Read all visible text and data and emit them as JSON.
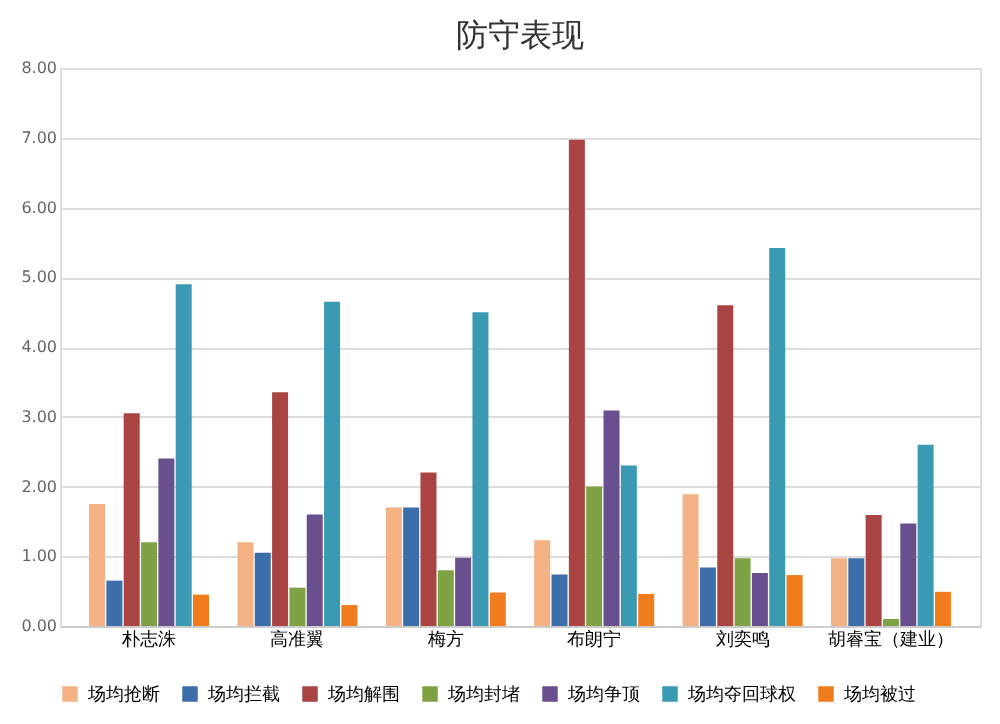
{
  "chart_data": {
    "type": "bar",
    "title": "防守表现",
    "categories": [
      "朴志洙",
      "高准翼",
      "梅方",
      "布朗宁",
      "刘奕鸣",
      "胡睿宝（建业）"
    ],
    "series": [
      {
        "name": "场均抢断",
        "color": "#f4b183",
        "values": [
          1.75,
          1.2,
          1.7,
          1.23,
          1.89,
          0.97
        ]
      },
      {
        "name": "场均拦截",
        "color": "#3c6eaa",
        "values": [
          0.65,
          1.05,
          1.7,
          0.74,
          0.84,
          0.97
        ]
      },
      {
        "name": "场均解围",
        "color": "#a94442",
        "values": [
          3.05,
          3.35,
          2.2,
          6.97,
          4.6,
          1.59
        ]
      },
      {
        "name": "场均封堵",
        "color": "#7fa344",
        "values": [
          1.2,
          0.55,
          0.8,
          2.0,
          0.97,
          0.1
        ]
      },
      {
        "name": "场均争顶",
        "color": "#6a4f8f",
        "values": [
          2.4,
          1.6,
          0.98,
          3.09,
          0.76,
          1.47
        ]
      },
      {
        "name": "场均夺回球权",
        "color": "#3a9ab4",
        "values": [
          4.9,
          4.65,
          4.5,
          2.3,
          5.42,
          2.6
        ]
      },
      {
        "name": "场均被过",
        "color": "#f07c1e",
        "values": [
          0.45,
          0.3,
          0.48,
          0.46,
          0.73,
          0.49
        ]
      }
    ],
    "ylim": [
      0,
      8
    ],
    "yticks": [
      {
        "value": 0,
        "label": "0.00"
      },
      {
        "value": 1,
        "label": "1.00"
      },
      {
        "value": 2,
        "label": "2.00"
      },
      {
        "value": 3,
        "label": "3.00"
      },
      {
        "value": 4,
        "label": "4.00"
      },
      {
        "value": 5,
        "label": "5.00"
      },
      {
        "value": 6,
        "label": "6.00"
      },
      {
        "value": 7,
        "label": "7.00"
      },
      {
        "value": 8,
        "label": "8.00"
      }
    ],
    "grid": "y",
    "legend": "bottom"
  }
}
